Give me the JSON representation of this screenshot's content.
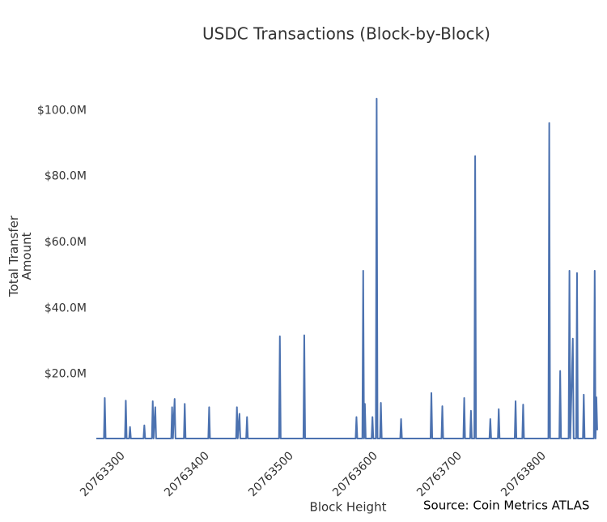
{
  "chart_data": {
    "type": "line",
    "title": "USDC Transactions (Block-by-Block)",
    "xlabel": "Block Height",
    "ylabel": "Total Transfer Amount",
    "annotation": "Source: Coin Metrics ATLAS",
    "x": [
      20763272,
      20763281,
      20763282,
      20763283,
      20763306,
      20763307,
      20763308,
      20763311,
      20763312,
      20763313,
      20763328,
      20763329,
      20763330,
      20763338,
      20763339,
      20763340,
      20763342,
      20763343,
      20763361,
      20763362,
      20763363,
      20763365,
      20763366,
      20763376,
      20763377,
      20763378,
      20763405,
      20763406,
      20763407,
      20763438,
      20763439,
      20763440,
      20763442,
      20763443,
      20763450,
      20763451,
      20763452,
      20763489,
      20763490,
      20763491,
      20763518,
      20763519,
      20763520,
      20763580,
      20763581,
      20763582,
      20763588,
      20763589,
      20763590,
      20763591,
      20763592,
      20763599,
      20763600,
      20763601,
      20763604,
      20763605,
      20763606,
      20763609,
      20763610,
      20763611,
      20763633,
      20763634,
      20763635,
      20763669,
      20763670,
      20763671,
      20763682,
      20763683,
      20763684,
      20763708,
      20763709,
      20763710,
      20763716,
      20763717,
      20763718,
      20763721,
      20763722,
      20763723,
      20763739,
      20763740,
      20763741,
      20763749,
      20763750,
      20763751,
      20763769,
      20763770,
      20763771,
      20763778,
      20763779,
      20763780,
      20763809,
      20763810,
      20763811,
      20763822,
      20763823,
      20763824,
      20763833,
      20763834,
      20763835,
      20763838,
      20763839,
      20763842,
      20763843,
      20763844,
      20763850,
      20763851,
      20763852,
      20763863,
      20763864,
      20763865,
      20763866,
      20763867
    ],
    "series": [
      {
        "name": "Total Transfer Amount",
        "color": "#4c72b0",
        "values": [
          500000,
          500000,
          12800000,
          500000,
          500000,
          12000000,
          500000,
          500000,
          4000000,
          500000,
          500000,
          4500000,
          500000,
          500000,
          11800000,
          500000,
          10000000,
          500000,
          500000,
          10000000,
          500000,
          12500000,
          500000,
          500000,
          11000000,
          500000,
          500000,
          10000000,
          500000,
          500000,
          10000000,
          500000,
          8000000,
          500000,
          500000,
          7000000,
          500000,
          500000,
          31500000,
          500000,
          500000,
          31800000,
          500000,
          500000,
          7000000,
          500000,
          500000,
          51400000,
          500000,
          11000000,
          500000,
          500000,
          7000000,
          500000,
          500000,
          103600000,
          500000,
          500000,
          11300000,
          500000,
          500000,
          6400000,
          500000,
          500000,
          14300000,
          500000,
          500000,
          10300000,
          500000,
          500000,
          12800000,
          500000,
          500000,
          8900000,
          500000,
          500000,
          86200000,
          500000,
          500000,
          6400000,
          500000,
          500000,
          9400000,
          500000,
          500000,
          11800000,
          500000,
          500000,
          10800000,
          500000,
          500000,
          96200000,
          500000,
          500000,
          21000000,
          500000,
          500000,
          51400000,
          500000,
          30800000,
          500000,
          500000,
          50700000,
          500000,
          500000,
          13800000,
          500000,
          500000,
          51400000,
          500000,
          13000000,
          3000000
        ]
      }
    ],
    "xlim": [
      20763271,
      20763869
    ],
    "xticks": [
      20763300,
      20763400,
      20763500,
      20763600,
      20763700,
      20763800
    ],
    "ylim": [
      0,
      105000000
    ],
    "yticks": [
      {
        "value": 20000000,
        "label": "$20.0M"
      },
      {
        "value": 40000000,
        "label": "$40.0M"
      },
      {
        "value": 60000000,
        "label": "$60.0M"
      },
      {
        "value": 80000000,
        "label": "$80.0M"
      },
      {
        "value": 100000000,
        "label": "$100.0M"
      }
    ],
    "grid": false
  }
}
